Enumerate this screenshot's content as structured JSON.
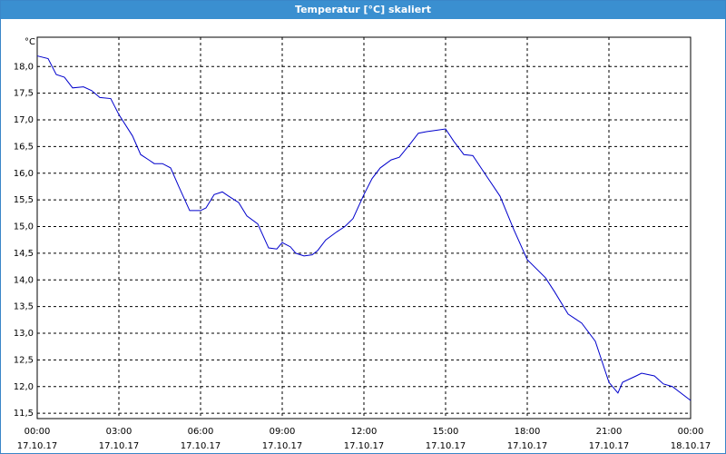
{
  "chart_data": {
    "type": "line",
    "title": "Temperatur [°C] skaliert",
    "y_unit": "°C",
    "x": [
      0,
      0.4,
      0.7,
      1.0,
      1.3,
      1.7,
      2.0,
      2.3,
      2.7,
      3.0,
      3.5,
      3.8,
      4.1,
      4.3,
      4.6,
      4.9,
      5.2,
      5.6,
      6.0,
      6.2,
      6.5,
      6.8,
      7.0,
      7.4,
      7.7,
      8.1,
      8.5,
      8.8,
      9.0,
      9.3,
      9.5,
      9.8,
      10.1,
      10.3,
      10.6,
      11.0,
      11.3,
      11.6,
      12.0,
      12.3,
      12.6,
      13.0,
      13.3,
      13.7,
      14.0,
      14.3,
      14.6,
      15.0,
      15.3,
      15.67,
      16.0,
      16.5,
      17.0,
      17.5,
      18.0,
      18.67,
      19.0,
      19.5,
      20.0,
      20.5,
      21.0,
      21.33,
      21.5,
      22.0,
      22.2,
      22.67,
      23.0,
      23.33,
      24.0
    ],
    "series": [
      {
        "name": "Temperatur",
        "color": "#0000cc",
        "values": [
          18.2,
          18.15,
          17.85,
          17.8,
          17.6,
          17.62,
          17.55,
          17.42,
          17.4,
          17.1,
          16.7,
          16.35,
          16.25,
          16.18,
          16.18,
          16.1,
          15.75,
          15.3,
          15.3,
          15.35,
          15.6,
          15.65,
          15.58,
          15.45,
          15.2,
          15.05,
          14.6,
          14.58,
          14.7,
          14.62,
          14.5,
          14.45,
          14.47,
          14.55,
          14.75,
          14.9,
          15.0,
          15.15,
          15.6,
          15.9,
          16.1,
          16.25,
          16.3,
          16.55,
          16.75,
          16.78,
          16.8,
          16.83,
          16.6,
          16.35,
          16.33,
          15.95,
          15.57,
          14.95,
          14.38,
          14.04,
          13.78,
          13.36,
          13.19,
          12.85,
          12.08,
          11.88,
          12.08,
          12.2,
          12.25,
          12.2,
          12.05,
          12.0,
          11.74
        ]
      }
    ],
    "xlim": [
      0,
      24
    ],
    "ylim": [
      11.4,
      18.55
    ],
    "xticks": [
      {
        "value": 0,
        "label": "00:00"
      },
      {
        "value": 3,
        "label": "03:00"
      },
      {
        "value": 6,
        "label": "06:00"
      },
      {
        "value": 9,
        "label": "09:00"
      },
      {
        "value": 12,
        "label": "12:00"
      },
      {
        "value": 15,
        "label": "15:00"
      },
      {
        "value": 18,
        "label": "18:00"
      },
      {
        "value": 21,
        "label": "21:00"
      },
      {
        "value": 24,
        "label": "00:00"
      }
    ],
    "xtick_dates": [
      "17.10.17",
      "17.10.17",
      "17.10.17",
      "17.10.17",
      "17.10.17",
      "17.10.17",
      "17.10.17",
      "17.10.17",
      "18.10.17"
    ],
    "yticks": [
      {
        "value": 11.5,
        "label": "11,5"
      },
      {
        "value": 12,
        "label": "12,0"
      },
      {
        "value": 12.5,
        "label": "12,5"
      },
      {
        "value": 13,
        "label": "13,0"
      },
      {
        "value": 13.5,
        "label": "13,5"
      },
      {
        "value": 14,
        "label": "14,0"
      },
      {
        "value": 14.5,
        "label": "14,5"
      },
      {
        "value": 15,
        "label": "15,0"
      },
      {
        "value": 15.5,
        "label": "15,5"
      },
      {
        "value": 16,
        "label": "16,0"
      },
      {
        "value": 16.5,
        "label": "16,5"
      },
      {
        "value": 17,
        "label": "17,0"
      },
      {
        "value": 17.5,
        "label": "17,5"
      },
      {
        "value": 18,
        "label": "18,0"
      }
    ],
    "grid": true
  }
}
